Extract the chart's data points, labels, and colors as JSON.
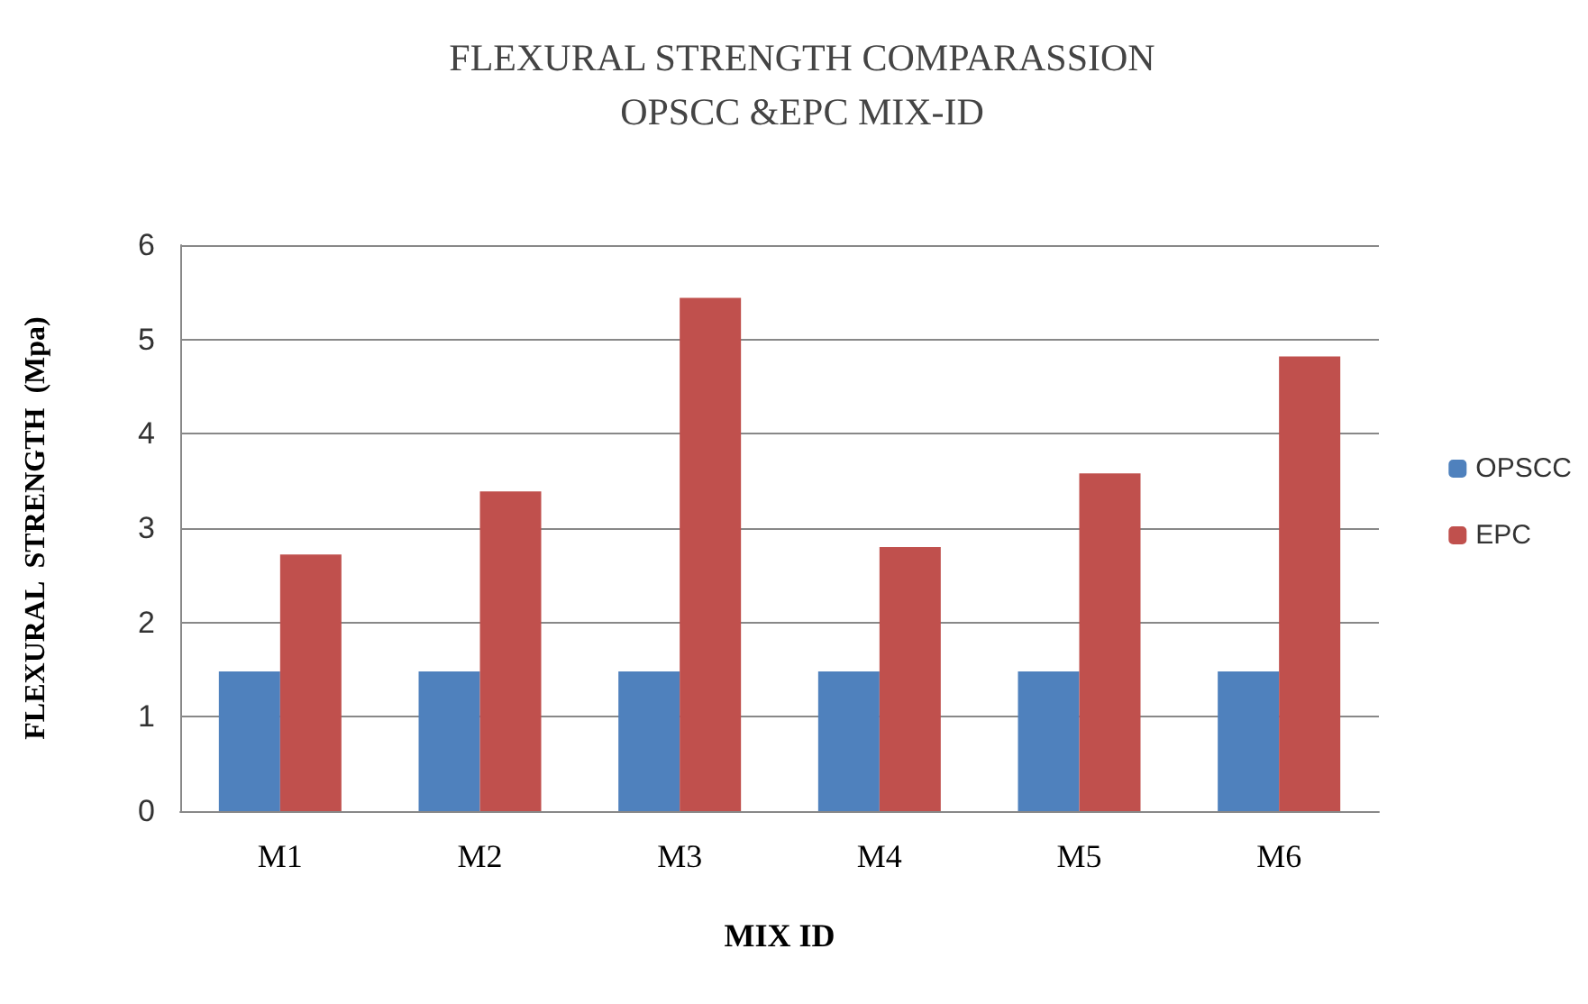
{
  "chart_data": {
    "type": "bar",
    "title": "FLEXURAL STRENGTH COMPARASSION\nOPSCC &EPC MIX-ID",
    "xlabel": "MIX ID",
    "ylabel": "FLEXURAL  STRENGTH  (Mpa)",
    "categories": [
      "M1",
      "M2",
      "M3",
      "M4",
      "M5",
      "M6"
    ],
    "series": [
      {
        "name": "OPSCC",
        "color": "#4f81bd",
        "values": [
          1.48,
          1.48,
          1.48,
          1.48,
          1.48,
          1.48
        ]
      },
      {
        "name": "EPC",
        "color": "#c0504d",
        "values": [
          2.72,
          3.39,
          5.44,
          2.8,
          3.58,
          4.82
        ]
      }
    ],
    "ylim": [
      0,
      6
    ],
    "yticks": [
      0,
      1,
      2,
      3,
      4,
      5,
      6
    ],
    "grid": "y",
    "legend": "right"
  }
}
